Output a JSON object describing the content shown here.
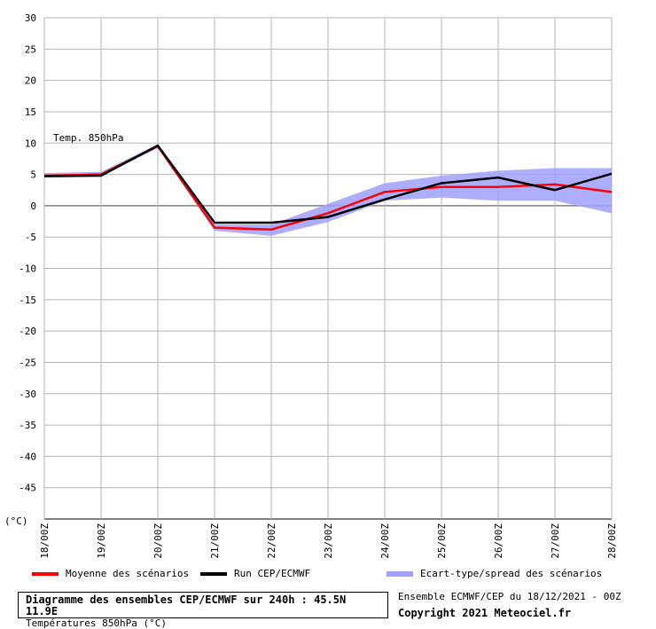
{
  "chart_data": {
    "type": "line",
    "annotation": "Temp. 850hPa",
    "yunit": "(°C)",
    "ylim": [
      -50,
      30
    ],
    "yticks": [
      30,
      25,
      20,
      15,
      10,
      5,
      0,
      -5,
      -10,
      -15,
      -20,
      -25,
      -30,
      -35,
      -40,
      -45
    ],
    "categories": [
      "18/00Z",
      "19/00Z",
      "20/00Z",
      "21/00Z",
      "22/00Z",
      "23/00Z",
      "24/00Z",
      "25/00Z",
      "26/00Z",
      "27/00Z",
      "28/00Z"
    ],
    "grid": true,
    "series": [
      {
        "name": "Moyenne des scénarios",
        "color": "#ff0000",
        "x": [
          0,
          1,
          2,
          3,
          4,
          5,
          6,
          7,
          8,
          9,
          10
        ],
        "values": [
          4.8,
          5.0,
          9.5,
          -3.5,
          -3.8,
          -1.2,
          2.2,
          3.0,
          3.0,
          3.4,
          2.2
        ]
      },
      {
        "name": "Run CEP/ECMWF",
        "color": "#000000",
        "x": [
          0,
          1,
          2,
          3,
          4,
          5,
          6,
          7,
          8,
          9,
          10
        ],
        "values": [
          4.7,
          4.8,
          9.6,
          -2.7,
          -2.7,
          -1.8,
          1.0,
          3.6,
          4.5,
          2.5,
          5.1
        ]
      },
      {
        "name": "Ecart-type/spread des scénarios",
        "color": "#a0a0ff",
        "x": [
          0,
          1,
          2,
          3,
          4,
          5,
          6,
          7,
          8,
          9,
          10
        ],
        "upper": [
          5.2,
          5.4,
          9.8,
          -3.0,
          -3.0,
          0.3,
          3.6,
          4.8,
          5.6,
          6.0,
          6.0
        ],
        "lower": [
          4.5,
          4.7,
          9.2,
          -4.0,
          -4.8,
          -2.6,
          0.8,
          1.3,
          0.8,
          0.8,
          -1.2
        ]
      }
    ]
  },
  "legend": {
    "mean": "Moyenne des scénarios",
    "run": "Run CEP/ECMWF",
    "spread": "Ecart-type/spread des scénarios"
  },
  "footer": {
    "title": "Diagramme des ensembles CEP/ECMWF sur 240h : 45.5N 11.9E",
    "subtitle": "Températures 850hPa (°C)",
    "ensemble": "Ensemble ECMWF/CEP du 18/12/2021 - 00Z",
    "copyright": "Copyright 2021 Meteociel.fr"
  },
  "colors": {
    "mean": "#ff0000",
    "run": "#000000",
    "spread": "#a0a0ff",
    "grid": "#b4b4b4",
    "zero": "#808080"
  }
}
